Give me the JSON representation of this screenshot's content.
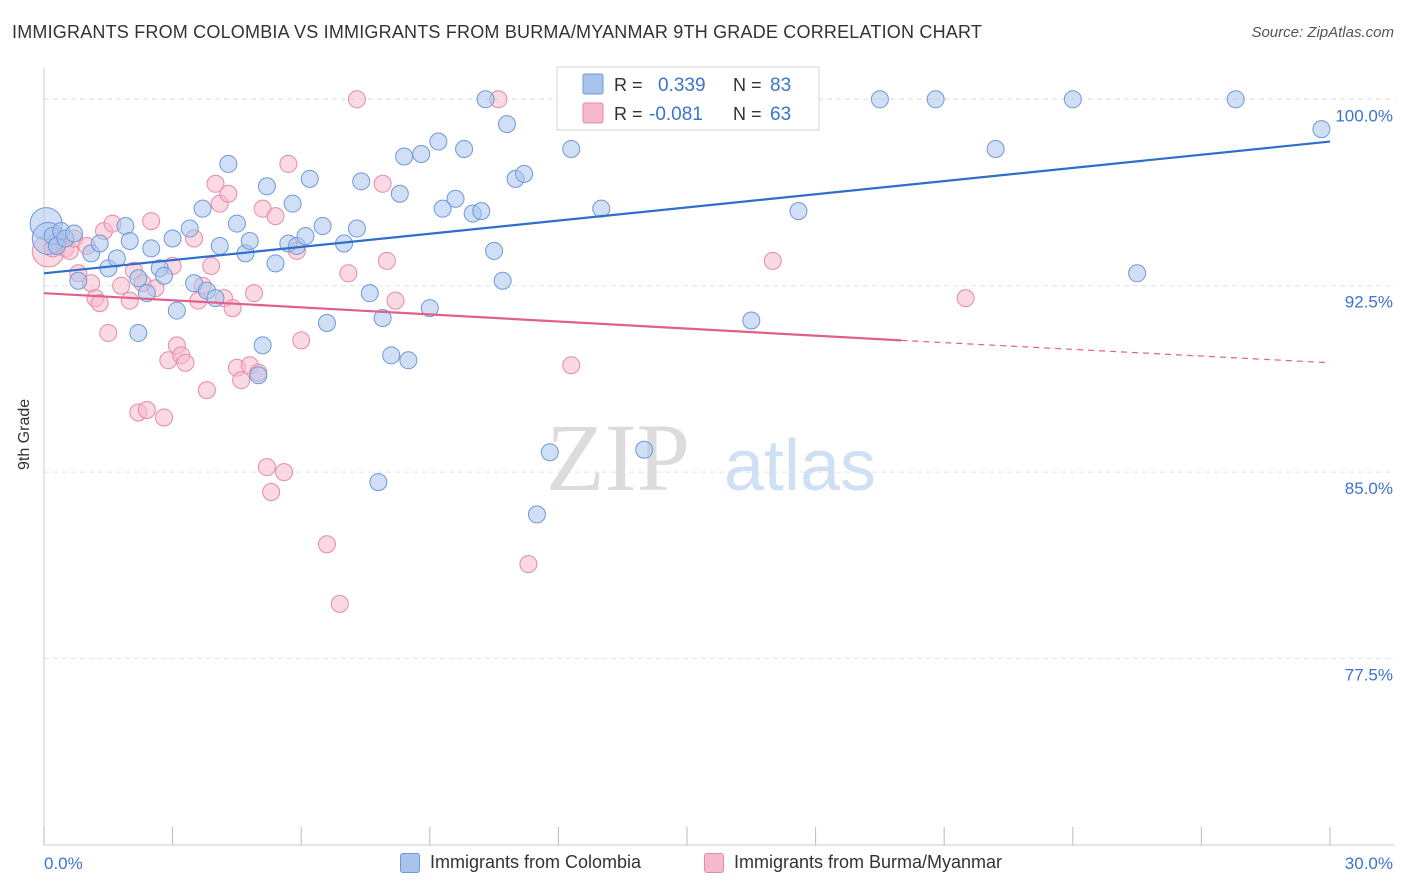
{
  "header": {
    "title": "IMMIGRANTS FROM COLOMBIA VS IMMIGRANTS FROM BURMA/MYANMAR 9TH GRADE CORRELATION CHART",
    "source": "Source: ZipAtlas.com"
  },
  "watermark": {
    "zip": "ZIP",
    "atlas": "atlas"
  },
  "legend_top": {
    "rows": [
      {
        "r_label": "R =",
        "r_value": "0.339",
        "n_label": "N =",
        "n_value": "83"
      },
      {
        "r_label": "R =",
        "r_value": "-0.081",
        "n_label": "N =",
        "n_value": "63"
      }
    ]
  },
  "legend_bottom": {
    "items": [
      "Immigrants from Colombia",
      "Immigrants from Burma/Myanmar"
    ]
  },
  "chart_data": {
    "type": "scatter",
    "ylabel": "9th Grade",
    "xlim": [
      0,
      30
    ],
    "ylim": [
      70,
      101.5
    ],
    "x_tick_labels": [
      "0.0%",
      "30.0%"
    ],
    "y_ticks": [
      77.5,
      85.0,
      92.5,
      100.0
    ],
    "y_tick_labels": [
      "77.5%",
      "85.0%",
      "92.5%",
      "100.0%"
    ],
    "grid": true,
    "colors": {
      "colombia_fill": "#a9c4ec",
      "colombia_stroke": "#6f99d8",
      "colombia_line": "#2e6fcc",
      "burma_fill": "#f6b9cc",
      "burma_stroke": "#e88aa8",
      "burma_line": "#e0608a",
      "value_text": "#3a74d0"
    },
    "series": [
      {
        "name": "Immigrants from Colombia",
        "r": 0.339,
        "n": 83,
        "trend": {
          "x": [
            0,
            30
          ],
          "y": [
            93.0,
            98.3
          ]
        },
        "points": [
          [
            0.05,
            95.0
          ],
          [
            0.1,
            94.4
          ],
          [
            0.2,
            94.5
          ],
          [
            0.3,
            94.1
          ],
          [
            0.4,
            94.7
          ],
          [
            0.5,
            94.4
          ],
          [
            0.7,
            94.6
          ],
          [
            0.8,
            92.7
          ],
          [
            1.1,
            93.8
          ],
          [
            1.3,
            94.2
          ],
          [
            1.5,
            93.2
          ],
          [
            1.7,
            93.6
          ],
          [
            1.9,
            94.9
          ],
          [
            2.0,
            94.3
          ],
          [
            2.2,
            92.8
          ],
          [
            2.2,
            90.6
          ],
          [
            2.4,
            92.2
          ],
          [
            2.5,
            94.0
          ],
          [
            2.7,
            93.2
          ],
          [
            2.8,
            92.9
          ],
          [
            3.0,
            94.4
          ],
          [
            3.1,
            91.5
          ],
          [
            3.4,
            94.8
          ],
          [
            3.5,
            92.6
          ],
          [
            3.7,
            95.6
          ],
          [
            3.8,
            92.3
          ],
          [
            4.0,
            92.0
          ],
          [
            4.1,
            94.1
          ],
          [
            4.3,
            97.4
          ],
          [
            4.5,
            95.0
          ],
          [
            4.7,
            93.8
          ],
          [
            4.8,
            94.3
          ],
          [
            5.0,
            88.9
          ],
          [
            5.1,
            90.1
          ],
          [
            5.2,
            96.5
          ],
          [
            5.4,
            93.4
          ],
          [
            5.7,
            94.2
          ],
          [
            5.8,
            95.8
          ],
          [
            5.9,
            94.1
          ],
          [
            6.1,
            94.5
          ],
          [
            6.2,
            96.8
          ],
          [
            6.5,
            94.9
          ],
          [
            6.6,
            91.0
          ],
          [
            7.0,
            94.2
          ],
          [
            7.3,
            94.8
          ],
          [
            7.4,
            96.7
          ],
          [
            7.6,
            92.2
          ],
          [
            7.8,
            84.6
          ],
          [
            7.9,
            91.2
          ],
          [
            8.1,
            89.7
          ],
          [
            8.3,
            96.2
          ],
          [
            8.4,
            97.7
          ],
          [
            8.5,
            89.5
          ],
          [
            8.8,
            97.8
          ],
          [
            9.0,
            91.6
          ],
          [
            9.2,
            98.3
          ],
          [
            9.3,
            95.6
          ],
          [
            9.6,
            96.0
          ],
          [
            9.8,
            98.0
          ],
          [
            10.0,
            95.4
          ],
          [
            10.2,
            95.5
          ],
          [
            10.3,
            100.0
          ],
          [
            10.5,
            93.9
          ],
          [
            10.7,
            92.7
          ],
          [
            10.8,
            99.0
          ],
          [
            11.0,
            96.8
          ],
          [
            11.2,
            97.0
          ],
          [
            11.5,
            83.3
          ],
          [
            11.8,
            85.8
          ],
          [
            12.2,
            100.0
          ],
          [
            12.3,
            98.0
          ],
          [
            13.0,
            95.6
          ],
          [
            13.5,
            100.0
          ],
          [
            14.0,
            85.9
          ],
          [
            16.5,
            91.1
          ],
          [
            17.6,
            95.5
          ],
          [
            19.5,
            100.0
          ],
          [
            20.8,
            100.0
          ],
          [
            22.2,
            98.0
          ],
          [
            24.0,
            100.0
          ],
          [
            25.5,
            93.0
          ],
          [
            27.8,
            100.0
          ],
          [
            29.8,
            98.8
          ]
        ]
      },
      {
        "name": "Immigrants from Burma/Myanmar",
        "r": -0.081,
        "n": 63,
        "trend": {
          "x": [
            0,
            20
          ],
          "y": [
            92.2,
            90.3
          ]
        },
        "trend_dashed": {
          "x": [
            20,
            30
          ],
          "y": [
            90.3,
            89.4
          ]
        },
        "points": [
          [
            0.1,
            93.9
          ],
          [
            0.2,
            94.0
          ],
          [
            0.3,
            94.3
          ],
          [
            0.5,
            94.0
          ],
          [
            0.6,
            93.9
          ],
          [
            0.7,
            94.4
          ],
          [
            0.8,
            93.0
          ],
          [
            1.0,
            94.1
          ],
          [
            1.1,
            92.6
          ],
          [
            1.2,
            92.0
          ],
          [
            1.3,
            91.8
          ],
          [
            1.4,
            94.7
          ],
          [
            1.5,
            90.6
          ],
          [
            1.6,
            95.0
          ],
          [
            1.8,
            92.5
          ],
          [
            2.0,
            91.9
          ],
          [
            2.1,
            93.1
          ],
          [
            2.2,
            87.4
          ],
          [
            2.3,
            92.6
          ],
          [
            2.4,
            87.5
          ],
          [
            2.5,
            95.1
          ],
          [
            2.6,
            92.4
          ],
          [
            2.8,
            87.2
          ],
          [
            2.9,
            89.5
          ],
          [
            3.0,
            93.3
          ],
          [
            3.1,
            90.1
          ],
          [
            3.2,
            89.7
          ],
          [
            3.3,
            89.4
          ],
          [
            3.5,
            94.4
          ],
          [
            3.6,
            91.9
          ],
          [
            3.7,
            92.5
          ],
          [
            3.8,
            88.3
          ],
          [
            3.9,
            93.3
          ],
          [
            4.0,
            96.6
          ],
          [
            4.1,
            95.8
          ],
          [
            4.2,
            92.0
          ],
          [
            4.3,
            96.2
          ],
          [
            4.4,
            91.6
          ],
          [
            4.5,
            89.2
          ],
          [
            4.6,
            88.7
          ],
          [
            4.8,
            89.3
          ],
          [
            4.9,
            92.2
          ],
          [
            5.0,
            89.0
          ],
          [
            5.1,
            95.6
          ],
          [
            5.2,
            85.2
          ],
          [
            5.3,
            84.2
          ],
          [
            5.4,
            95.3
          ],
          [
            5.6,
            85.0
          ],
          [
            5.7,
            97.4
          ],
          [
            5.9,
            93.9
          ],
          [
            6.0,
            90.3
          ],
          [
            6.6,
            82.1
          ],
          [
            6.9,
            79.7
          ],
          [
            7.1,
            93.0
          ],
          [
            7.3,
            100.0
          ],
          [
            7.9,
            96.6
          ],
          [
            8.0,
            93.5
          ],
          [
            8.2,
            91.9
          ],
          [
            10.6,
            100.0
          ],
          [
            11.3,
            81.3
          ],
          [
            12.3,
            89.3
          ],
          [
            17.0,
            93.5
          ],
          [
            21.5,
            92.0
          ]
        ]
      }
    ]
  }
}
